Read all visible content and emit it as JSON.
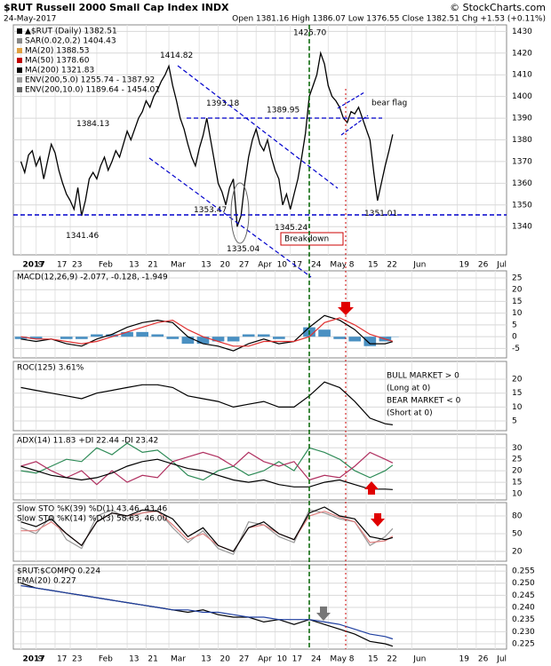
{
  "header": {
    "symbol": "$RUT Russell 2000 Small Cap Index INDX",
    "credit": "© StockCharts.com",
    "date": "24-May-2017",
    "quote": "Open 1381.16 High 1386.07 Low 1376.55 Close 1382.51 Chg +1.53 (+0.11%)"
  },
  "chart_data": [
    {
      "type": "line",
      "xlim": [
        -2,
        128
      ],
      "xticks": [
        {
          "value": 0,
          "label": "2017"
        },
        {
          "value": 4,
          "label": "9"
        },
        {
          "value": 9,
          "label": "17"
        },
        {
          "value": 13,
          "label": "23"
        },
        {
          "value": 20,
          "label": "Feb"
        },
        {
          "value": 28,
          "label": "13"
        },
        {
          "value": 33,
          "label": "21"
        },
        {
          "value": 39,
          "label": "Mar"
        },
        {
          "value": 47,
          "label": "13"
        },
        {
          "value": 52,
          "label": "20"
        },
        {
          "value": 57,
          "label": "27"
        },
        {
          "value": 62,
          "label": "Apr"
        },
        {
          "value": 67,
          "label": "10"
        },
        {
          "value": 71,
          "label": "17"
        },
        {
          "value": 76,
          "label": "24"
        },
        {
          "value": 81,
          "label": "May"
        },
        {
          "value": 86,
          "label": "8"
        },
        {
          "value": 91,
          "label": "15"
        },
        {
          "value": 96,
          "label": "22"
        },
        {
          "value": 103,
          "label": "Jun"
        },
        {
          "value": 115,
          "label": "19"
        },
        {
          "value": 120,
          "label": "26"
        },
        {
          "value": 125,
          "label": "Jul"
        }
      ],
      "ylim": [
        1327,
        1433
      ],
      "yticks": [
        1340,
        1350,
        1360,
        1370,
        1380,
        1390,
        1400,
        1410,
        1420,
        1430
      ],
      "legend": [
        {
          "text": "▲$RUT (Daily) 1382.51",
          "color": "#000000"
        },
        {
          "text": "SAR(0.02,0.2) 1404.43",
          "color": "#888888"
        },
        {
          "text": "MA(20) 1388.53",
          "color": "#e0a040"
        },
        {
          "text": "MA(50) 1378.60",
          "color": "#c00000"
        },
        {
          "text": "MA(200) 1321.83",
          "color": "#000000"
        },
        {
          "text": "ENV(200,5.0) 1255.74 - 1387.92",
          "color": "#999999"
        },
        {
          "text": "ENV(200,10.0) 1189.64 - 1454.01",
          "color": "#666666"
        }
      ],
      "price_labels": [
        {
          "value": 1425.7,
          "label": "1425.70"
        },
        {
          "value": 1414.82,
          "label": "1414.82"
        },
        {
          "value": 1393.18,
          "label": "1393.18"
        },
        {
          "value": 1389.95,
          "label": "1389.95"
        },
        {
          "value": 1384.13,
          "label": "1384.13"
        },
        {
          "value": 1341.46,
          "label": "1341.46"
        },
        {
          "value": 1353.47,
          "label": "1353.47"
        },
        {
          "value": 1335.04,
          "label": "1335.04"
        },
        {
          "value": 1345.24,
          "label": "1345.24"
        },
        {
          "value": 1351.01,
          "label": "1351.01"
        }
      ],
      "annotations": [
        "bear flag",
        "Breakdown"
      ],
      "x": [
        0,
        1,
        2,
        3,
        4,
        5,
        6,
        7,
        8,
        9,
        10,
        11,
        12,
        13,
        14,
        15,
        16,
        17,
        18,
        19,
        20,
        21,
        22,
        23,
        24,
        25,
        26,
        27,
        28,
        29,
        30,
        31,
        32,
        33,
        34,
        35,
        36,
        37,
        38,
        39,
        40,
        41,
        42,
        43,
        44,
        45,
        46,
        47,
        48,
        49,
        50,
        51,
        52,
        53,
        54,
        55,
        56,
        57,
        58,
        59,
        60,
        61,
        62,
        63,
        64,
        65,
        66,
        67,
        68,
        69,
        70,
        71,
        72,
        73,
        74,
        75,
        76,
        77,
        78,
        79,
        80,
        81,
        82,
        83,
        84,
        85,
        86,
        87,
        88,
        89,
        90,
        91,
        92,
        93,
        94,
        95,
        96,
        97,
        98
      ],
      "series": [
        {
          "color": "#000000",
          "values": [
            1370,
            1365,
            1373,
            1375,
            1368,
            1372,
            1362,
            1370,
            1378,
            1374,
            1366,
            1360,
            1355,
            1352,
            1348,
            1358,
            1345,
            1352,
            1362,
            1365,
            1362,
            1368,
            1372,
            1366,
            1370,
            1375,
            1372,
            1378,
            1384,
            1380,
            1385,
            1390,
            1393,
            1398,
            1395,
            1400,
            1403,
            1407,
            1410,
            1414,
            1405,
            1398,
            1390,
            1385,
            1378,
            1372,
            1368,
            1376,
            1382,
            1390,
            1380,
            1370,
            1360,
            1356,
            1350,
            1358,
            1362,
            1340,
            1345,
            1360,
            1372,
            1380,
            1385,
            1378,
            1375,
            1380,
            1372,
            1366,
            1362,
            1350,
            1355,
            1348,
            1355,
            1362,
            1372,
            1383,
            1400,
            1405,
            1410,
            1420,
            1415,
            1405,
            1400,
            1398,
            1395,
            1390,
            1388,
            1393,
            1392,
            1395,
            1390,
            1385,
            1380,
            1365,
            1352,
            1360,
            1368,
            1375,
            1382.51
          ]
        }
      ]
    },
    {
      "type": "line",
      "title": "MACD(12,26,9) -2.077, -0.128, -1.949",
      "xlim": [
        -2,
        128
      ],
      "ylim": [
        -9,
        28
      ],
      "yticks": [
        -5,
        0,
        5,
        10,
        15,
        20,
        25
      ],
      "x": [
        0,
        4,
        8,
        12,
        16,
        20,
        24,
        28,
        32,
        36,
        40,
        44,
        48,
        52,
        56,
        60,
        64,
        68,
        72,
        76,
        80,
        84,
        88,
        92,
        96,
        98
      ],
      "series": [
        {
          "kind": "bar",
          "color": "#4a90c2",
          "values": [
            -1,
            -1,
            0,
            -1,
            -1,
            1,
            1,
            2,
            2,
            1,
            -1,
            -3,
            -3,
            -2,
            -2,
            1,
            1,
            -1,
            0,
            4,
            3,
            -1,
            -2,
            -4,
            -2,
            -0.128
          ]
        },
        {
          "color": "#000000",
          "values": [
            -1,
            -2,
            -1,
            -3,
            -4,
            -1,
            1,
            4,
            6,
            7,
            6,
            0,
            -3,
            -4,
            -6,
            -3,
            -1,
            -3,
            -2,
            4,
            9,
            7,
            3,
            -3,
            -3,
            -2.077
          ]
        },
        {
          "color": "#e03030",
          "values": [
            0,
            -1,
            -1,
            -2,
            -3,
            -2,
            0,
            2,
            4,
            6,
            7,
            3,
            0,
            -2,
            -4,
            -4,
            -2,
            -2,
            -2,
            0,
            6,
            8,
            5,
            1,
            -1,
            -1.949
          ]
        }
      ]
    },
    {
      "type": "line",
      "title": "ROC(125) 3.61%",
      "xlim": [
        -2,
        128
      ],
      "ylim": [
        1.5,
        26.4
      ],
      "yticks": [
        5,
        10,
        15,
        20
      ],
      "annotations": [
        {
          "text": "BULL MARKET > 0",
          "color": "#006400"
        },
        {
          "text": "(Long at 0)",
          "color": "#006400"
        },
        {
          "text": "BEAR MARKET < 0",
          "color": "#cc0000"
        },
        {
          "text": "(Short at 0)",
          "color": "#cc0000"
        }
      ],
      "x": [
        0,
        4,
        8,
        12,
        16,
        20,
        24,
        28,
        32,
        36,
        40,
        44,
        48,
        52,
        56,
        60,
        64,
        68,
        72,
        76,
        80,
        84,
        88,
        92,
        96,
        98
      ],
      "series": [
        {
          "color": "#000000",
          "values": [
            17,
            16,
            15,
            14,
            13,
            15,
            16,
            17,
            18,
            18,
            17,
            14,
            13,
            12,
            10,
            11,
            12,
            10,
            10,
            14,
            19,
            17,
            12,
            6,
            4,
            3.61
          ]
        }
      ]
    },
    {
      "type": "line",
      "title": "ADX(14) 11.83 +DI 22.44 -DI 23.42",
      "xlim": [
        -2,
        128
      ],
      "ylim": [
        7.3,
        35.9
      ],
      "yticks": [
        10,
        15,
        20,
        25,
        30
      ],
      "x": [
        0,
        4,
        8,
        12,
        16,
        20,
        24,
        28,
        32,
        36,
        40,
        44,
        48,
        52,
        56,
        60,
        64,
        68,
        72,
        76,
        80,
        84,
        88,
        92,
        96,
        98
      ],
      "series": [
        {
          "color": "#2e8b57",
          "values": [
            20,
            19,
            22,
            25,
            24,
            30,
            27,
            32,
            28,
            29,
            24,
            18,
            16,
            20,
            22,
            18,
            20,
            24,
            20,
            30,
            28,
            25,
            20,
            17,
            20,
            22.44
          ]
        },
        {
          "color": "#b03060",
          "values": [
            22,
            24,
            20,
            17,
            20,
            14,
            20,
            15,
            18,
            17,
            24,
            26,
            28,
            26,
            22,
            28,
            24,
            22,
            24,
            16,
            18,
            17,
            22,
            28,
            25,
            23.42
          ]
        },
        {
          "color": "#000000",
          "values": [
            22,
            20,
            18,
            17,
            16,
            17,
            19,
            22,
            24,
            25,
            23,
            21,
            20,
            18,
            16,
            15,
            16,
            14,
            13,
            13,
            15,
            16,
            14,
            12,
            12,
            11.83
          ]
        }
      ]
    },
    {
      "type": "line",
      "title": "Slow STO %K(39) %D(1) 43.46, 43.46",
      "subtitle": "Slow STO %K(14) %D(3) 58.63, 46.00",
      "xlim": [
        -2,
        128
      ],
      "ylim": [
        3.5,
        102.5
      ],
      "yticks": [
        20,
        50,
        80
      ],
      "x": [
        0,
        4,
        8,
        12,
        16,
        20,
        24,
        28,
        32,
        36,
        40,
        44,
        48,
        52,
        56,
        60,
        64,
        68,
        72,
        76,
        80,
        84,
        88,
        92,
        96,
        98
      ],
      "series": [
        {
          "color": "#999999",
          "values": [
            60,
            50,
            80,
            40,
            25,
            80,
            90,
            75,
            85,
            90,
            60,
            35,
            55,
            25,
            15,
            70,
            65,
            45,
            35,
            90,
            85,
            75,
            70,
            30,
            45,
            58.63
          ]
        },
        {
          "color": "#e08080",
          "values": [
            55,
            55,
            70,
            50,
            30,
            70,
            85,
            80,
            85,
            88,
            65,
            40,
            50,
            30,
            20,
            60,
            65,
            50,
            40,
            80,
            88,
            78,
            70,
            35,
            38,
            46
          ]
        },
        {
          "color": "#000000",
          "values": [
            70,
            62,
            75,
            50,
            30,
            70,
            85,
            80,
            90,
            88,
            75,
            45,
            60,
            30,
            20,
            60,
            70,
            50,
            40,
            85,
            95,
            80,
            75,
            45,
            40,
            43.46
          ]
        }
      ]
    },
    {
      "type": "line",
      "xlim": [
        -2,
        128
      ],
      "ylim": [
        0.2228,
        0.2576
      ],
      "yticks": [
        0.225,
        {
          "value": 0.23,
          "label": "0.230"
        },
        0.235,
        {
          "value": 0.24,
          "label": "0.240"
        },
        0.245,
        {
          "value": 0.25,
          "label": "0.250"
        },
        0.255
      ],
      "xticks": [
        {
          "value": 0,
          "label": "2017"
        },
        {
          "value": 4,
          "label": "9"
        },
        {
          "value": 9,
          "label": "17"
        },
        {
          "value": 13,
          "label": "23"
        },
        {
          "value": 20,
          "label": "Feb"
        },
        {
          "value": 28,
          "label": "13"
        },
        {
          "value": 33,
          "label": "21"
        },
        {
          "value": 39,
          "label": "Mar"
        },
        {
          "value": 47,
          "label": "13"
        },
        {
          "value": 52,
          "label": "20"
        },
        {
          "value": 57,
          "label": "27"
        },
        {
          "value": 62,
          "label": "Apr"
        },
        {
          "value": 67,
          "label": "10"
        },
        {
          "value": 71,
          "label": "17"
        },
        {
          "value": 76,
          "label": "24"
        },
        {
          "value": 81,
          "label": "May"
        },
        {
          "value": 86,
          "label": "8"
        },
        {
          "value": 91,
          "label": "15"
        },
        {
          "value": 96,
          "label": "22"
        },
        {
          "value": 103,
          "label": "Jun"
        },
        {
          "value": 115,
          "label": "19"
        },
        {
          "value": 120,
          "label": "26"
        },
        {
          "value": 125,
          "label": "Jul"
        }
      ],
      "x": [
        0,
        4,
        8,
        12,
        16,
        20,
        24,
        28,
        32,
        36,
        40,
        44,
        48,
        52,
        56,
        60,
        64,
        68,
        72,
        76,
        80,
        84,
        88,
        92,
        96,
        98
      ],
      "series": [
        {
          "name": "$RUT:$COMPQ 0.224",
          "color": "#000000",
          "values": [
            0.25,
            0.248,
            0.247,
            0.246,
            0.245,
            0.244,
            0.243,
            0.242,
            0.241,
            0.24,
            0.239,
            0.238,
            0.239,
            0.237,
            0.236,
            0.236,
            0.234,
            0.235,
            0.233,
            0.235,
            0.233,
            0.231,
            0.229,
            0.226,
            0.225,
            0.224
          ]
        },
        {
          "name": "EMA(20) 0.227",
          "color": "#1f3fa0",
          "values": [
            0.249,
            0.248,
            0.247,
            0.246,
            0.245,
            0.244,
            0.243,
            0.242,
            0.241,
            0.24,
            0.239,
            0.239,
            0.238,
            0.238,
            0.237,
            0.236,
            0.236,
            0.235,
            0.235,
            0.235,
            0.234,
            0.233,
            0.231,
            0.229,
            0.228,
            0.227
          ]
        }
      ]
    }
  ]
}
